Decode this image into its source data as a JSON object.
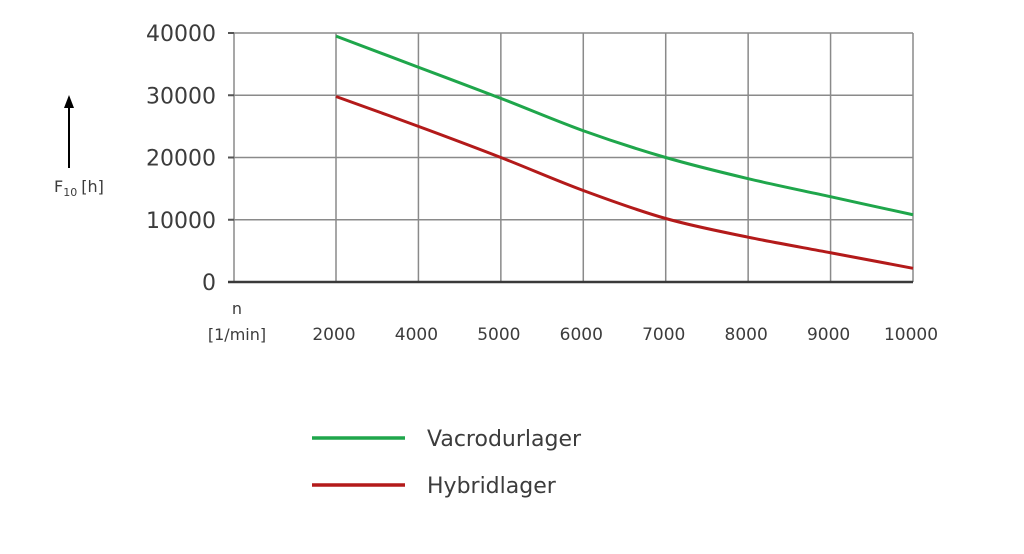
{
  "chart_data": {
    "type": "line",
    "title": "",
    "xlabel_line1": "n",
    "xlabel_line2": "[1/min]",
    "ylabel_main": "F",
    "ylabel_sub": "10",
    "ylabel_unit": "[h]",
    "categories": [
      "2000",
      "4000",
      "5000",
      "6000",
      "7000",
      "8000",
      "9000",
      "10000"
    ],
    "y_ticks": [
      "0",
      "10000",
      "20000",
      "30000",
      "40000"
    ],
    "ylim": [
      0,
      40000
    ],
    "grid": true,
    "legend_position": "bottom",
    "series": [
      {
        "name": "Vacrodurlager",
        "color": "#1fa64b",
        "values": [
          39500,
          34500,
          29500,
          24300,
          20000,
          16600,
          13700,
          10800
        ]
      },
      {
        "name": "Hybridlager",
        "color": "#b31a1a",
        "values": [
          29800,
          25000,
          20000,
          14700,
          10200,
          7200,
          4700,
          2200
        ]
      }
    ]
  }
}
